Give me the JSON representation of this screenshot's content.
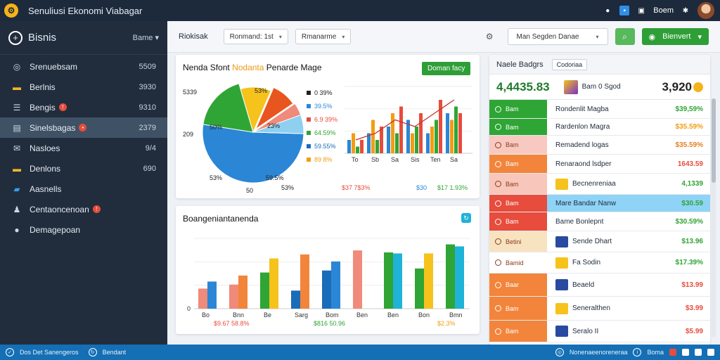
{
  "topbar": {
    "title": "Senuliusi Ekonomi Viabagar",
    "right_label": "Boem"
  },
  "sidebar": {
    "title": "Bisnis",
    "dropdown_label": "Bame",
    "items": [
      {
        "label": "Srenuebsam",
        "value": "5509",
        "icon": "dashboard-icon"
      },
      {
        "label": "Berlnis",
        "value": "3930",
        "icon": "folder-icon"
      },
      {
        "label": "Bengis",
        "value": "9310",
        "icon": "list-icon",
        "badge": "!"
      },
      {
        "label": "Sinelsbagas",
        "value": "2379",
        "icon": "document-icon",
        "badge": "•",
        "active": true
      },
      {
        "label": "Nasloes",
        "value": "9/4",
        "icon": "mail-icon"
      },
      {
        "label": "Denlons",
        "value": "690",
        "icon": "folder-icon"
      },
      {
        "label": "Aasnells",
        "value": "",
        "icon": "users-icon"
      },
      {
        "label": "Centaoncenoan",
        "value": "",
        "icon": "person-icon",
        "badge": "!"
      },
      {
        "label": "Demagepoan",
        "value": "",
        "icon": "settings-icon"
      }
    ]
  },
  "toolbar": {
    "label": "Riokisak",
    "select1": "Ronmand: 1st",
    "select2": "Rmanarme",
    "select3": "Man Segden Danae",
    "action_button": "Bienvert"
  },
  "card1": {
    "title_part1": "Nenda Sfont",
    "title_highlight": "Nodanta",
    "title_part2": "Penarde Mage",
    "button": "Doman facy",
    "pie_labels": [
      "5339",
      "53%",
      "209",
      "50%",
      "23%",
      "53%",
      "53%",
      "50",
      "59.5%"
    ],
    "legend": [
      {
        "label": "0 39%",
        "color": "#222222"
      },
      {
        "label": "39.5%",
        "color": "#2b86d6"
      },
      {
        "label": "6.9 39%",
        "color": "#e74c3c"
      },
      {
        "label": "64.59%",
        "color": "#2fa535"
      },
      {
        "label": "59.55%",
        "color": "#1b6cb8"
      },
      {
        "label": "89 8%",
        "color": "#f39c12"
      }
    ],
    "bar_x_labels": [
      "To",
      "Sb",
      "Sa",
      "Sis",
      "Ten",
      "Sa"
    ],
    "bar_bottom": [
      "$37 7$3%",
      "$30",
      "$17 1.93%"
    ]
  },
  "card2": {
    "title": "Boangeniantanenda",
    "bar_x_labels": [
      "Bo",
      "Bnn",
      "Be",
      "Sarg",
      "Bom",
      "Ben",
      "Ben",
      "Bon",
      "Bmn"
    ],
    "bottom": [
      "$9.67 58.8%",
      "$816 50.96",
      "$2.3%"
    ]
  },
  "chart_data": [
    {
      "type": "pie",
      "title": "Nenda Sfont Nodanta Penarde Mage",
      "categories": [
        "blue",
        "green",
        "yellow",
        "orange-red",
        "pink",
        "light-blue"
      ],
      "values": [
        52,
        18,
        11,
        9,
        4,
        6
      ]
    },
    {
      "type": "bar",
      "title": "",
      "categories": [
        "To",
        "Sb",
        "Sa",
        "Sis",
        "Ten",
        "Sa"
      ],
      "series": [
        {
          "name": "",
          "values": [
            2,
            3,
            4,
            5,
            3,
            6
          ],
          "color": "#2b86d6"
        },
        {
          "name": "",
          "values": [
            3,
            5,
            6,
            3,
            4,
            5
          ],
          "color": "#f39c12"
        },
        {
          "name": "",
          "values": [
            1,
            2,
            3,
            4,
            5,
            7
          ],
          "color": "#2fa535"
        },
        {
          "name": "",
          "values": [
            2,
            4,
            7,
            6,
            8,
            6
          ],
          "color": "#e74c3c"
        }
      ],
      "line": [
        2,
        3,
        5,
        4,
        6,
        8
      ],
      "ylim": [
        0,
        10
      ]
    },
    {
      "type": "bar",
      "title": "Boangeniantanenda",
      "categories": [
        "Bo",
        "Bnn",
        "Be",
        "Sarg",
        "Bom",
        "Ben",
        "Ben",
        "Bon",
        "Bmn"
      ],
      "series": [
        {
          "name": "",
          "values": [
            20,
            24,
            36,
            18,
            38,
            58,
            56,
            40,
            64
          ],
          "colors": [
            "#f08a7a",
            "#f08a7a",
            "#2fa535",
            "#1b6cb8",
            "#1b6cb8",
            "#f08a7a",
            "#2fa535",
            "#2fa535",
            "#2fa535"
          ]
        },
        {
          "name": "",
          "values": [
            27,
            33,
            50,
            54,
            47,
            0,
            55,
            55,
            62
          ],
          "colors": [
            "#2b86d6",
            "#f2853b",
            "#f6c21c",
            "#f2853b",
            "#2b86d6",
            "#f08a7a",
            "#1fb3d8",
            "#f6c21c",
            "#1fb3d8"
          ]
        }
      ],
      "ylim": [
        0,
        70
      ],
      "yticks": [
        "0"
      ]
    }
  ],
  "right_panel": {
    "title": "Naele Badgrs",
    "chip": "Codoriaa",
    "big_value1": "4,4435.83",
    "big_label": "Bam 0 Sgod",
    "big_value2": "3,920",
    "rows": [
      {
        "tag": "Bam",
        "color": "#2fa535",
        "desc": "Rondenlit Magba",
        "value": "$39,59%",
        "vcolor": "#2fa535"
      },
      {
        "tag": "Bam",
        "color": "#2fa535",
        "desc": "Rardenlon Magra",
        "value": "$35.59%",
        "vcolor": "#f39c12"
      },
      {
        "tag": "Bam",
        "color": "#f7c9c0",
        "desc": "Remadend logas",
        "value": "$35.59%",
        "vcolor": "#e67e22"
      },
      {
        "tag": "Bam",
        "color": "#f2853b",
        "desc": "Renaraond lsdper",
        "value": "1643.59",
        "vcolor": "#e74c3c"
      },
      {
        "tag": "Bam",
        "color": "#f8c6ba",
        "desc": "Becnenreniaa",
        "value": "4,1339",
        "vcolor": "#2fa535"
      },
      {
        "tag": "Bam",
        "color": "#e74c3c",
        "desc": "Mare Bandar Nanw",
        "value": "$30.59",
        "vcolor": "#2fa535",
        "highlight": true
      },
      {
        "tag": "Bam",
        "color": "#e74c3c",
        "desc": "Bame Bonlepnt",
        "value": "$30.59%",
        "vcolor": "#2fa535"
      },
      {
        "tag": "Betini",
        "color": "#f7e3c0",
        "desc": "Sende Dhart",
        "value": "$13.96",
        "vcolor": "#2fa535"
      },
      {
        "tag": "Bamid",
        "color": "#ffffff",
        "desc": "Fa Sodin",
        "value": "$17.39%",
        "vcolor": "#2fa535"
      },
      {
        "tag": "Baar",
        "color": "#f2853b",
        "desc": "Beaeld",
        "value": "$13.99",
        "vcolor": "#e74c3c"
      },
      {
        "tag": "Bam",
        "color": "#f2853b",
        "desc": "Seneralthen",
        "value": "$3.99",
        "vcolor": "#e74c3c"
      },
      {
        "tag": "Bam",
        "color": "#f2853b",
        "desc": "Seralo II",
        "value": "$5.99",
        "vcolor": "#e74c3c"
      }
    ]
  },
  "statusbar": {
    "left": "Dos Det Sanengeros",
    "mid": "Bendant",
    "right1": "Nonenaeenoreneraa",
    "right2": "Boma"
  }
}
